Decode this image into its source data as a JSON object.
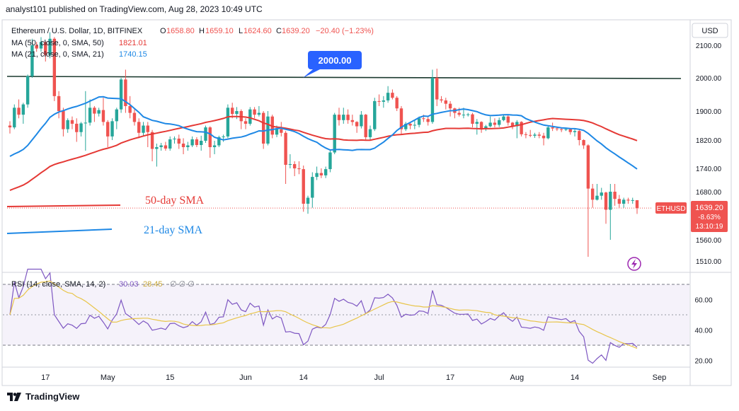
{
  "header": {
    "publisher": "analyst101 published on TradingView.com, Aug 28, 2023 10:49 UTC"
  },
  "legend": {
    "symbol": "Ethereum / U.S. Dollar, 1D, BITFINEX",
    "o_label": "O",
    "o_value": "1658.80",
    "h_label": "H",
    "h_value": "1659.10",
    "l_label": "L",
    "l_value": "1624.60",
    "c_label": "C",
    "c_value": "1639.20",
    "change": "−20.40 (−1.23%)",
    "ma50_label": "MA (50, close, 0, SMA, 50)",
    "ma50_value": "1821.01",
    "ma21_label": "MA (21, close, 0, SMA, 21)",
    "ma21_value": "1740.15",
    "rsi_label": "RSI (14, close, SMA, 14, 2)",
    "rsi_value": "30.03",
    "rsi_ma_value": "28.45"
  },
  "currency_button": "USD",
  "price_badge": {
    "symbol": "ETHUSD",
    "price": "1639.20",
    "change_pct": "-8.63%",
    "countdown": "13:10:19"
  },
  "annotations": {
    "level_label": "2000.00",
    "sma50_label": "50-day SMA",
    "sma21_label": "21-day SMA"
  },
  "footer": {
    "brand": "TradingView"
  },
  "colors": {
    "up": "#26a69a",
    "down": "#ef5350",
    "sma50": "#e53935",
    "sma21": "#1e88e5",
    "rsi": "#7e57c2",
    "rsi_ma": "#e8c54a",
    "level": "#1b3a2f",
    "callout": "#2962ff"
  },
  "chart_data": {
    "type": "candlestick",
    "price_axis": {
      "ticks": [
        2100,
        2000,
        1900,
        1820,
        1740,
        1680,
        1560,
        1510
      ],
      "tick_labels": [
        "2100.00",
        "2000.00",
        "1900.00",
        "1820.00",
        "1740.00",
        "1680.00",
        "1560.00",
        "1510.00"
      ]
    },
    "x_axis": {
      "ticks": [
        "17",
        "May",
        "15",
        "Jun",
        "14",
        "Jul",
        "17",
        "Aug",
        "14",
        "Sep"
      ]
    },
    "horizontal_level": 2000,
    "candles": [
      {
        "d": "Apr 09",
        "o": 1860,
        "h": 1872,
        "l": 1838,
        "c": 1855
      },
      {
        "d": "Apr 10",
        "o": 1855,
        "h": 1920,
        "l": 1850,
        "c": 1910
      },
      {
        "d": "Apr 11",
        "o": 1910,
        "h": 1935,
        "l": 1880,
        "c": 1890
      },
      {
        "d": "Apr 12",
        "o": 1890,
        "h": 1925,
        "l": 1865,
        "c": 1920
      },
      {
        "d": "Apr 13",
        "o": 1920,
        "h": 2010,
        "l": 1910,
        "c": 2005
      },
      {
        "d": "Apr 14",
        "o": 2005,
        "h": 2120,
        "l": 2000,
        "c": 2100
      },
      {
        "d": "Apr 15",
        "o": 2100,
        "h": 2110,
        "l": 2080,
        "c": 2090
      },
      {
        "d": "Apr 16",
        "o": 2090,
        "h": 2125,
        "l": 2080,
        "c": 2110
      },
      {
        "d": "Apr 17",
        "o": 2110,
        "h": 2112,
        "l": 2050,
        "c": 2070
      },
      {
        "d": "Apr 18",
        "o": 2070,
        "h": 2140,
        "l": 2060,
        "c": 2120
      },
      {
        "d": "Apr 19",
        "o": 2120,
        "h": 2125,
        "l": 1930,
        "c": 1945
      },
      {
        "d": "Apr 20",
        "o": 1945,
        "h": 1960,
        "l": 1880,
        "c": 1900
      },
      {
        "d": "Apr 21",
        "o": 1900,
        "h": 1910,
        "l": 1830,
        "c": 1850
      },
      {
        "d": "Apr 22",
        "o": 1850,
        "h": 1880,
        "l": 1840,
        "c": 1875
      },
      {
        "d": "Apr 23",
        "o": 1875,
        "h": 1885,
        "l": 1850,
        "c": 1865
      },
      {
        "d": "Apr 24",
        "o": 1865,
        "h": 1880,
        "l": 1815,
        "c": 1842
      },
      {
        "d": "Apr 25",
        "o": 1842,
        "h": 1870,
        "l": 1830,
        "c": 1866
      },
      {
        "d": "Apr 26",
        "o": 1866,
        "h": 1960,
        "l": 1790,
        "c": 1868
      },
      {
        "d": "Apr 27",
        "o": 1868,
        "h": 1935,
        "l": 1860,
        "c": 1910
      },
      {
        "d": "Apr 28",
        "o": 1910,
        "h": 1915,
        "l": 1870,
        "c": 1893
      },
      {
        "d": "Apr 29",
        "o": 1893,
        "h": 1910,
        "l": 1885,
        "c": 1903
      },
      {
        "d": "Apr 30",
        "o": 1903,
        "h": 1940,
        "l": 1860,
        "c": 1870
      },
      {
        "d": "May 01",
        "o": 1870,
        "h": 1875,
        "l": 1800,
        "c": 1830
      },
      {
        "d": "May 02",
        "o": 1830,
        "h": 1880,
        "l": 1820,
        "c": 1872
      },
      {
        "d": "May 03",
        "o": 1872,
        "h": 1910,
        "l": 1850,
        "c": 1905
      },
      {
        "d": "May 04",
        "o": 1905,
        "h": 2000,
        "l": 1895,
        "c": 1995
      },
      {
        "d": "May 05",
        "o": 1995,
        "h": 2025,
        "l": 1895,
        "c": 1915
      },
      {
        "d": "May 06",
        "o": 1915,
        "h": 1945,
        "l": 1880,
        "c": 1895
      },
      {
        "d": "May 07",
        "o": 1895,
        "h": 1905,
        "l": 1860,
        "c": 1870
      },
      {
        "d": "May 08",
        "o": 1870,
        "h": 1880,
        "l": 1825,
        "c": 1840
      },
      {
        "d": "May 09",
        "o": 1840,
        "h": 1870,
        "l": 1830,
        "c": 1860
      },
      {
        "d": "May 10",
        "o": 1860,
        "h": 1870,
        "l": 1800,
        "c": 1842
      },
      {
        "d": "May 11",
        "o": 1842,
        "h": 1848,
        "l": 1760,
        "c": 1795
      },
      {
        "d": "May 12",
        "o": 1795,
        "h": 1810,
        "l": 1745,
        "c": 1800
      },
      {
        "d": "May 13",
        "o": 1800,
        "h": 1812,
        "l": 1790,
        "c": 1805
      },
      {
        "d": "May 14",
        "o": 1805,
        "h": 1815,
        "l": 1790,
        "c": 1796
      },
      {
        "d": "May 15",
        "o": 1796,
        "h": 1830,
        "l": 1790,
        "c": 1822
      },
      {
        "d": "May 16",
        "o": 1822,
        "h": 1830,
        "l": 1810,
        "c": 1824
      },
      {
        "d": "May 17",
        "o": 1824,
        "h": 1835,
        "l": 1795,
        "c": 1810
      },
      {
        "d": "May 18",
        "o": 1810,
        "h": 1825,
        "l": 1780,
        "c": 1800
      },
      {
        "d": "May 19",
        "o": 1800,
        "h": 1815,
        "l": 1790,
        "c": 1805
      },
      {
        "d": "May 20",
        "o": 1805,
        "h": 1830,
        "l": 1800,
        "c": 1822
      },
      {
        "d": "May 21",
        "o": 1822,
        "h": 1828,
        "l": 1800,
        "c": 1806
      },
      {
        "d": "May 22",
        "o": 1806,
        "h": 1832,
        "l": 1790,
        "c": 1818
      },
      {
        "d": "May 23",
        "o": 1818,
        "h": 1860,
        "l": 1812,
        "c": 1855
      },
      {
        "d": "May 24",
        "o": 1855,
        "h": 1858,
        "l": 1770,
        "c": 1800
      },
      {
        "d": "May 25",
        "o": 1800,
        "h": 1818,
        "l": 1780,
        "c": 1805
      },
      {
        "d": "May 26",
        "o": 1805,
        "h": 1832,
        "l": 1800,
        "c": 1828
      },
      {
        "d": "May 27",
        "o": 1828,
        "h": 1835,
        "l": 1815,
        "c": 1830
      },
      {
        "d": "May 28",
        "o": 1830,
        "h": 1920,
        "l": 1825,
        "c": 1910
      },
      {
        "d": "May 29",
        "o": 1910,
        "h": 1925,
        "l": 1880,
        "c": 1892
      },
      {
        "d": "May 30",
        "o": 1892,
        "h": 1912,
        "l": 1878,
        "c": 1900
      },
      {
        "d": "May 31",
        "o": 1900,
        "h": 1905,
        "l": 1850,
        "c": 1872
      },
      {
        "d": "Jun 01",
        "o": 1872,
        "h": 1880,
        "l": 1850,
        "c": 1865
      },
      {
        "d": "Jun 02",
        "o": 1865,
        "h": 1912,
        "l": 1860,
        "c": 1905
      },
      {
        "d": "Jun 03",
        "o": 1905,
        "h": 1912,
        "l": 1880,
        "c": 1890
      },
      {
        "d": "Jun 04",
        "o": 1890,
        "h": 1915,
        "l": 1885,
        "c": 1895
      },
      {
        "d": "Jun 05",
        "o": 1895,
        "h": 1900,
        "l": 1795,
        "c": 1810
      },
      {
        "d": "Jun 06",
        "o": 1810,
        "h": 1900,
        "l": 1805,
        "c": 1885
      },
      {
        "d": "Jun 07",
        "o": 1885,
        "h": 1890,
        "l": 1825,
        "c": 1835
      },
      {
        "d": "Jun 08",
        "o": 1835,
        "h": 1860,
        "l": 1828,
        "c": 1850
      },
      {
        "d": "Jun 09",
        "o": 1850,
        "h": 1870,
        "l": 1830,
        "c": 1840
      },
      {
        "d": "Jun 10",
        "o": 1840,
        "h": 1845,
        "l": 1700,
        "c": 1750
      },
      {
        "d": "Jun 11",
        "o": 1750,
        "h": 1780,
        "l": 1740,
        "c": 1752
      },
      {
        "d": "Jun 12",
        "o": 1752,
        "h": 1760,
        "l": 1720,
        "c": 1740
      },
      {
        "d": "Jun 13",
        "o": 1740,
        "h": 1760,
        "l": 1725,
        "c": 1738
      },
      {
        "d": "Jun 14",
        "o": 1738,
        "h": 1748,
        "l": 1630,
        "c": 1650
      },
      {
        "d": "Jun 15",
        "o": 1650,
        "h": 1670,
        "l": 1625,
        "c": 1665
      },
      {
        "d": "Jun 16",
        "o": 1665,
        "h": 1730,
        "l": 1640,
        "c": 1718
      },
      {
        "d": "Jun 17",
        "o": 1718,
        "h": 1745,
        "l": 1710,
        "c": 1728
      },
      {
        "d": "Jun 18",
        "o": 1728,
        "h": 1740,
        "l": 1715,
        "c": 1722
      },
      {
        "d": "Jun 19",
        "o": 1722,
        "h": 1745,
        "l": 1715,
        "c": 1738
      },
      {
        "d": "Jun 20",
        "o": 1738,
        "h": 1790,
        "l": 1730,
        "c": 1785
      },
      {
        "d": "Jun 21",
        "o": 1785,
        "h": 1895,
        "l": 1780,
        "c": 1890
      },
      {
        "d": "Jun 22",
        "o": 1890,
        "h": 1910,
        "l": 1860,
        "c": 1875
      },
      {
        "d": "Jun 23",
        "o": 1875,
        "h": 1910,
        "l": 1865,
        "c": 1890
      },
      {
        "d": "Jun 24",
        "o": 1890,
        "h": 1905,
        "l": 1865,
        "c": 1875
      },
      {
        "d": "Jun 25",
        "o": 1875,
        "h": 1890,
        "l": 1860,
        "c": 1870
      },
      {
        "d": "Jun 26",
        "o": 1870,
        "h": 1872,
        "l": 1840,
        "c": 1858
      },
      {
        "d": "Jun 27",
        "o": 1858,
        "h": 1900,
        "l": 1852,
        "c": 1890
      },
      {
        "d": "Jun 28",
        "o": 1890,
        "h": 1892,
        "l": 1820,
        "c": 1828
      },
      {
        "d": "Jun 29",
        "o": 1828,
        "h": 1860,
        "l": 1820,
        "c": 1850
      },
      {
        "d": "Jun 30",
        "o": 1850,
        "h": 1940,
        "l": 1845,
        "c": 1930
      },
      {
        "d": "Jul 01",
        "o": 1930,
        "h": 1950,
        "l": 1915,
        "c": 1928
      },
      {
        "d": "Jul 02",
        "o": 1928,
        "h": 1945,
        "l": 1910,
        "c": 1932
      },
      {
        "d": "Jul 03",
        "o": 1932,
        "h": 1975,
        "l": 1925,
        "c": 1955
      },
      {
        "d": "Jul 04",
        "o": 1955,
        "h": 1965,
        "l": 1935,
        "c": 1940
      },
      {
        "d": "Jul 05",
        "o": 1940,
        "h": 1945,
        "l": 1900,
        "c": 1908
      },
      {
        "d": "Jul 06",
        "o": 1908,
        "h": 1915,
        "l": 1835,
        "c": 1850
      },
      {
        "d": "Jul 07",
        "o": 1850,
        "h": 1870,
        "l": 1845,
        "c": 1865
      },
      {
        "d": "Jul 08",
        "o": 1865,
        "h": 1870,
        "l": 1850,
        "c": 1860
      },
      {
        "d": "Jul 09",
        "o": 1860,
        "h": 1875,
        "l": 1850,
        "c": 1862
      },
      {
        "d": "Jul 10",
        "o": 1862,
        "h": 1885,
        "l": 1855,
        "c": 1880
      },
      {
        "d": "Jul 11",
        "o": 1880,
        "h": 1890,
        "l": 1870,
        "c": 1878
      },
      {
        "d": "Jul 12",
        "o": 1878,
        "h": 1885,
        "l": 1860,
        "c": 1870
      },
      {
        "d": "Jul 13",
        "o": 1870,
        "h": 2025,
        "l": 1865,
        "c": 2000
      },
      {
        "d": "Jul 14",
        "o": 2000,
        "h": 2028,
        "l": 1915,
        "c": 1935
      },
      {
        "d": "Jul 15",
        "o": 1935,
        "h": 1945,
        "l": 1925,
        "c": 1932
      },
      {
        "d": "Jul 16",
        "o": 1932,
        "h": 1940,
        "l": 1905,
        "c": 1922
      },
      {
        "d": "Jul 17",
        "o": 1922,
        "h": 1930,
        "l": 1885,
        "c": 1908
      },
      {
        "d": "Jul 18",
        "o": 1908,
        "h": 1910,
        "l": 1880,
        "c": 1895
      },
      {
        "d": "Jul 19",
        "o": 1895,
        "h": 1910,
        "l": 1885,
        "c": 1890
      },
      {
        "d": "Jul 20",
        "o": 1890,
        "h": 1910,
        "l": 1880,
        "c": 1890
      },
      {
        "d": "Jul 21",
        "o": 1890,
        "h": 1895,
        "l": 1885,
        "c": 1891
      },
      {
        "d": "Jul 22",
        "o": 1891,
        "h": 1895,
        "l": 1855,
        "c": 1865
      },
      {
        "d": "Jul 23",
        "o": 1865,
        "h": 1878,
        "l": 1835,
        "c": 1870
      },
      {
        "d": "Jul 24",
        "o": 1870,
        "h": 1872,
        "l": 1840,
        "c": 1850
      },
      {
        "d": "Jul 25",
        "o": 1850,
        "h": 1862,
        "l": 1845,
        "c": 1858
      },
      {
        "d": "Jul 26",
        "o": 1858,
        "h": 1885,
        "l": 1855,
        "c": 1868
      },
      {
        "d": "Jul 27",
        "o": 1868,
        "h": 1880,
        "l": 1855,
        "c": 1862
      },
      {
        "d": "Jul 28",
        "o": 1862,
        "h": 1882,
        "l": 1856,
        "c": 1875
      },
      {
        "d": "Jul 29",
        "o": 1875,
        "h": 1890,
        "l": 1872,
        "c": 1885
      },
      {
        "d": "Jul 30",
        "o": 1885,
        "h": 1890,
        "l": 1860,
        "c": 1868
      },
      {
        "d": "Jul 31",
        "o": 1868,
        "h": 1870,
        "l": 1850,
        "c": 1858
      },
      {
        "d": "Aug 01",
        "o": 1858,
        "h": 1875,
        "l": 1825,
        "c": 1870
      },
      {
        "d": "Aug 02",
        "o": 1870,
        "h": 1872,
        "l": 1830,
        "c": 1836
      },
      {
        "d": "Aug 03",
        "o": 1836,
        "h": 1842,
        "l": 1825,
        "c": 1834
      },
      {
        "d": "Aug 04",
        "o": 1834,
        "h": 1848,
        "l": 1828,
        "c": 1832
      },
      {
        "d": "Aug 05",
        "o": 1832,
        "h": 1840,
        "l": 1826,
        "c": 1835
      },
      {
        "d": "Aug 06",
        "o": 1835,
        "h": 1842,
        "l": 1825,
        "c": 1832
      },
      {
        "d": "Aug 07",
        "o": 1832,
        "h": 1840,
        "l": 1805,
        "c": 1825
      },
      {
        "d": "Aug 08",
        "o": 1825,
        "h": 1860,
        "l": 1822,
        "c": 1855
      },
      {
        "d": "Aug 09",
        "o": 1855,
        "h": 1868,
        "l": 1845,
        "c": 1852
      },
      {
        "d": "Aug 10",
        "o": 1852,
        "h": 1856,
        "l": 1845,
        "c": 1850
      },
      {
        "d": "Aug 11",
        "o": 1850,
        "h": 1854,
        "l": 1842,
        "c": 1848
      },
      {
        "d": "Aug 12",
        "o": 1848,
        "h": 1852,
        "l": 1845,
        "c": 1850
      },
      {
        "d": "Aug 13",
        "o": 1850,
        "h": 1852,
        "l": 1835,
        "c": 1842
      },
      {
        "d": "Aug 14",
        "o": 1842,
        "h": 1850,
        "l": 1830,
        "c": 1845
      },
      {
        "d": "Aug 15",
        "o": 1845,
        "h": 1850,
        "l": 1805,
        "c": 1820
      },
      {
        "d": "Aug 16",
        "o": 1820,
        "h": 1822,
        "l": 1795,
        "c": 1805
      },
      {
        "d": "Aug 17",
        "o": 1805,
        "h": 1808,
        "l": 1520,
        "c": 1688
      },
      {
        "d": "Aug 18",
        "o": 1688,
        "h": 1700,
        "l": 1640,
        "c": 1660
      },
      {
        "d": "Aug 19",
        "o": 1660,
        "h": 1700,
        "l": 1658,
        "c": 1670
      },
      {
        "d": "Aug 20",
        "o": 1670,
        "h": 1690,
        "l": 1660,
        "c": 1678
      },
      {
        "d": "Aug 21",
        "o": 1678,
        "h": 1680,
        "l": 1600,
        "c": 1635
      },
      {
        "d": "Aug 22",
        "o": 1635,
        "h": 1700,
        "l": 1560,
        "c": 1680
      },
      {
        "d": "Aug 23",
        "o": 1680,
        "h": 1700,
        "l": 1645,
        "c": 1662
      },
      {
        "d": "Aug 24",
        "o": 1662,
        "h": 1672,
        "l": 1640,
        "c": 1650
      },
      {
        "d": "Aug 25",
        "o": 1650,
        "h": 1665,
        "l": 1640,
        "c": 1660
      },
      {
        "d": "Aug 26",
        "o": 1660,
        "h": 1665,
        "l": 1650,
        "c": 1658
      },
      {
        "d": "Aug 27",
        "o": 1658,
        "h": 1665,
        "l": 1650,
        "c": 1659
      },
      {
        "d": "Aug 28",
        "o": 1658.8,
        "h": 1659.1,
        "l": 1624.6,
        "c": 1639.2
      }
    ],
    "rsi_axis": {
      "ticks": [
        60,
        40,
        20
      ],
      "tick_labels": [
        "60.00",
        "40.00",
        "20.00"
      ],
      "bands": [
        70,
        50,
        30
      ]
    }
  }
}
